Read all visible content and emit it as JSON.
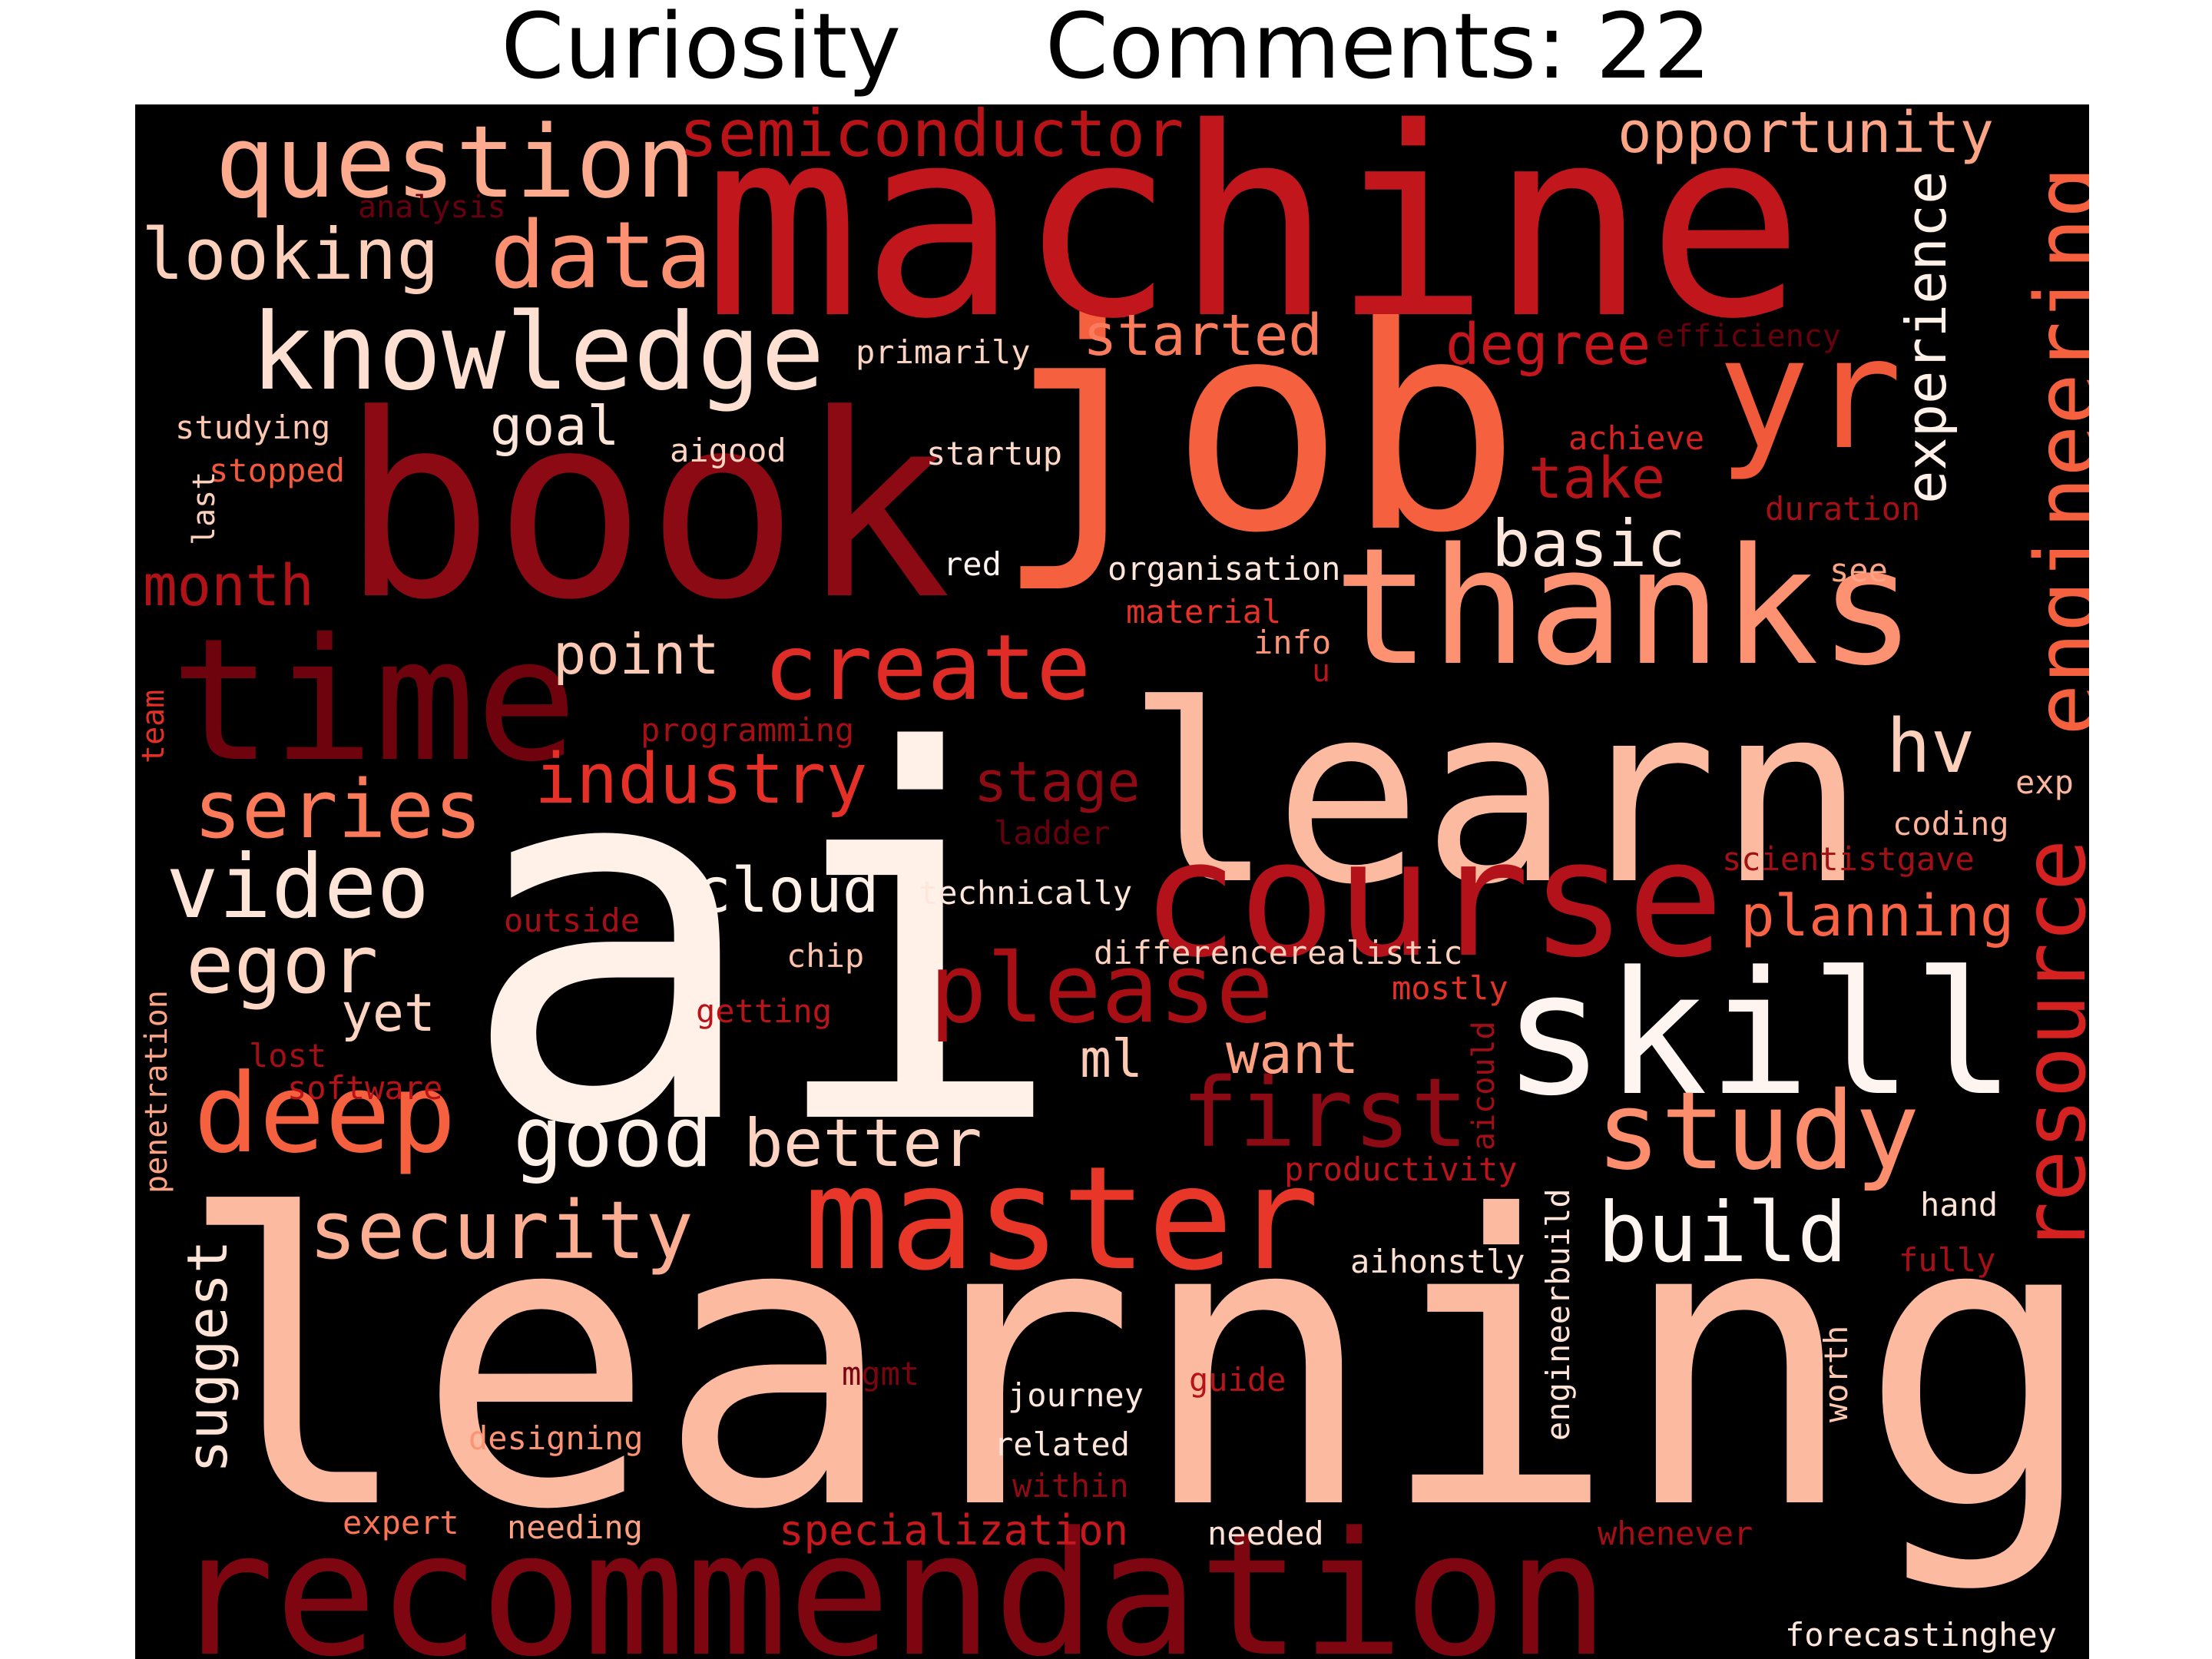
{
  "title": {
    "category": "Curiosity",
    "comments_label": "Comments: 22"
  },
  "palette": {
    "background": "#000000",
    "darkest": "#67000d",
    "dark": "#a50f15",
    "mid": "#cb181d",
    "warm": "#ef3b2c",
    "salmon": "#fb6a4a",
    "light": "#fc9272",
    "pale": "#fcbba1",
    "paler": "#fee0d2",
    "white": "#fff5f0"
  },
  "words": [
    {
      "text": "learning",
      "color": "#fcbba1"
    },
    {
      "text": "ai",
      "color": "#fff0e8"
    },
    {
      "text": "book",
      "color": "#8b0a14"
    },
    {
      "text": "job",
      "color": "#f5613f"
    },
    {
      "text": "machine",
      "color": "#c0161c"
    },
    {
      "text": "learn",
      "color": "#fcbba1"
    },
    {
      "text": "recommendation",
      "color": "#7e0610"
    },
    {
      "text": "thanks",
      "color": "#fc9272"
    },
    {
      "text": "time",
      "color": "#6e030e"
    },
    {
      "text": "course",
      "color": "#b3121a"
    },
    {
      "text": "master",
      "color": "#e83628"
    },
    {
      "text": "skill",
      "color": "#fff5f0"
    },
    {
      "text": "yr",
      "color": "#f05a3a"
    },
    {
      "text": "knowledge",
      "color": "#fee0d2"
    },
    {
      "text": "question",
      "color": "#fcab8f"
    },
    {
      "text": "engineering",
      "color": "#f5613f"
    },
    {
      "text": "resource",
      "color": "#d52221"
    },
    {
      "text": "deep",
      "color": "#f5613f"
    },
    {
      "text": "study",
      "color": "#fc8e6e"
    },
    {
      "text": "please",
      "color": "#a70f15"
    },
    {
      "text": "first",
      "color": "#8b0a14"
    },
    {
      "text": "video",
      "color": "#fee5d8"
    },
    {
      "text": "data",
      "color": "#fc9070"
    },
    {
      "text": "create",
      "color": "#e02c26"
    },
    {
      "text": "series",
      "color": "#fb7a5a"
    },
    {
      "text": "security",
      "color": "#fcae92"
    },
    {
      "text": "semiconductor",
      "color": "#b81418"
    },
    {
      "text": "egor",
      "color": "#fed7c5"
    },
    {
      "text": "industry",
      "color": "#e43027"
    },
    {
      "text": "good",
      "color": "#fff0e8"
    },
    {
      "text": "build",
      "color": "#fff5f0"
    },
    {
      "text": "experience",
      "color": "#fff0e8"
    },
    {
      "text": "looking",
      "color": "#fdd0bc"
    },
    {
      "text": "cloud",
      "color": "#fff0e8"
    },
    {
      "text": "better",
      "color": "#fdd4c2"
    },
    {
      "text": "opportunity",
      "color": "#fca486"
    },
    {
      "text": "started",
      "color": "#fb7c5c"
    },
    {
      "text": "degree",
      "color": "#c4161c"
    },
    {
      "text": "basic",
      "color": "#fee8de"
    },
    {
      "text": "month",
      "color": "#b11218"
    },
    {
      "text": "planning",
      "color": "#f96245"
    },
    {
      "text": "hv",
      "color": "#fdd0bc"
    },
    {
      "text": "stage",
      "color": "#8e0b14"
    },
    {
      "text": "point",
      "color": "#fdcab5"
    },
    {
      "text": "suggest",
      "color": "#fee3d6"
    },
    {
      "text": "take",
      "color": "#b51419"
    },
    {
      "text": "want",
      "color": "#fca082"
    },
    {
      "text": "goal",
      "color": "#fee5d9"
    },
    {
      "text": "yet",
      "color": "#fdd4c2"
    },
    {
      "text": "ml",
      "color": "#fdcab5"
    },
    {
      "text": "specialization",
      "color": "#c9181d"
    },
    {
      "text": "primarily",
      "color": "#fdd4c2"
    },
    {
      "text": "analysis",
      "color": "#660010"
    },
    {
      "text": "efficiency",
      "color": "#67000d"
    },
    {
      "text": "studying",
      "color": "#fdc6b0"
    },
    {
      "text": "stopped",
      "color": "#f4583b"
    },
    {
      "text": "last",
      "color": "#fdd0bc"
    },
    {
      "text": "aigood",
      "color": "#fed5c3"
    },
    {
      "text": "startup",
      "color": "#fed8c7"
    },
    {
      "text": "achieve",
      "color": "#d52221"
    },
    {
      "text": "duration",
      "color": "#a60f15"
    },
    {
      "text": "red",
      "color": "#fff5f0"
    },
    {
      "text": "organisation",
      "color": "#fee6da"
    },
    {
      "text": "material",
      "color": "#e53228"
    },
    {
      "text": "see",
      "color": "#fca486"
    },
    {
      "text": "info",
      "color": "#fc9272"
    },
    {
      "text": "u",
      "color": "#bb141a"
    },
    {
      "text": "programming",
      "color": "#a30f15"
    },
    {
      "text": "team",
      "color": "#e32f27"
    },
    {
      "text": "ladder",
      "color": "#67000d"
    },
    {
      "text": "exp",
      "color": "#fcb89e"
    },
    {
      "text": "coding",
      "color": "#fcb398"
    },
    {
      "text": "scientistgave",
      "color": "#a20f15"
    },
    {
      "text": "technically",
      "color": "#fee6da"
    },
    {
      "text": "outside",
      "color": "#a60f15"
    },
    {
      "text": "chip",
      "color": "#fcc2aa"
    },
    {
      "text": "differencerealistic",
      "color": "#fdd1bd"
    },
    {
      "text": "mostly",
      "color": "#e53228"
    },
    {
      "text": "getting",
      "color": "#b91419"
    },
    {
      "text": "penetration",
      "color": "#fca285"
    },
    {
      "text": "lost",
      "color": "#a30f15"
    },
    {
      "text": "software",
      "color": "#b81418"
    },
    {
      "text": "aicould",
      "color": "#a10e15"
    },
    {
      "text": "productivity",
      "color": "#bc141a"
    },
    {
      "text": "hand",
      "color": "#fee3d6"
    },
    {
      "text": "fully",
      "color": "#a60f15"
    },
    {
      "text": "aihonstly",
      "color": "#fee0d2"
    },
    {
      "text": "engineerbuild",
      "color": "#fee3d6"
    },
    {
      "text": "mgmt",
      "color": "#7a0510"
    },
    {
      "text": "guide",
      "color": "#b51419"
    },
    {
      "text": "journey",
      "color": "#fee8de"
    },
    {
      "text": "worth",
      "color": "#fdc7b1"
    },
    {
      "text": "designing",
      "color": "#fc9474"
    },
    {
      "text": "related",
      "color": "#fee5d9"
    },
    {
      "text": "within",
      "color": "#8e0b14"
    },
    {
      "text": "expert",
      "color": "#fb7555"
    },
    {
      "text": "needing",
      "color": "#fca082"
    },
    {
      "text": "needed",
      "color": "#fee0d2"
    },
    {
      "text": "whenever",
      "color": "#a30f15"
    },
    {
      "text": "forecastinghey",
      "color": "#fee6da"
    }
  ]
}
